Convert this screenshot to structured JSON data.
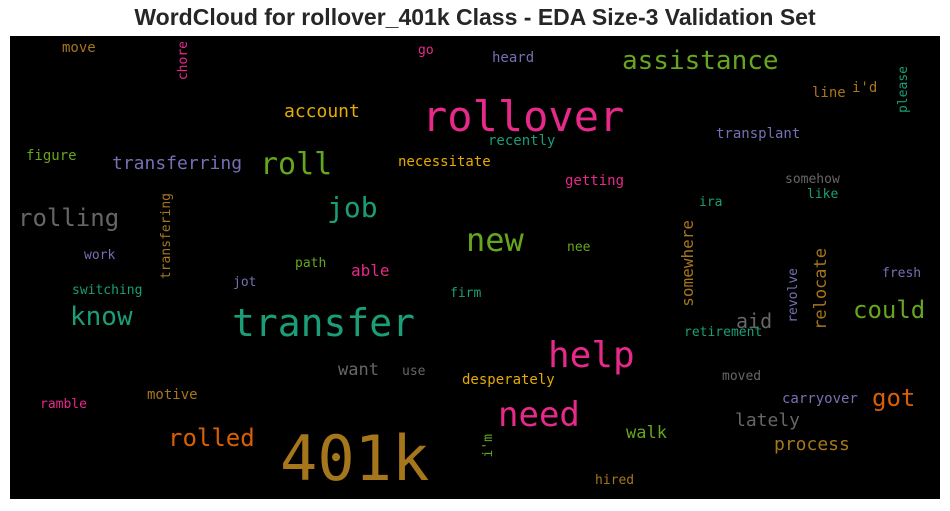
{
  "chart_data": {
    "type": "wordcloud",
    "title": "WordCloud for rollover_401k Class - EDA Size-3 Validation Set",
    "colors": {
      "green": "#66a61e",
      "teal": "#1b9e77",
      "pink": "#e7298a",
      "purple": "#7570b3",
      "orange": "#d95f02",
      "gold": "#e6ab02",
      "brown": "#a6761d",
      "gray": "#666666"
    },
    "words": [
      {
        "text": "401k",
        "color": "#a6761d"
      },
      {
        "text": "transfer",
        "color": "#1b9e77"
      },
      {
        "text": "rollover",
        "color": "#e7298a"
      },
      {
        "text": "help",
        "color": "#e7298a"
      },
      {
        "text": "need",
        "color": "#e7298a"
      },
      {
        "text": "new",
        "color": "#66a61e"
      },
      {
        "text": "roll",
        "color": "#66a61e"
      },
      {
        "text": "job",
        "color": "#1b9e77"
      },
      {
        "text": "assistance",
        "color": "#66a61e"
      },
      {
        "text": "know",
        "color": "#1b9e77"
      },
      {
        "text": "rolling",
        "color": "#666666"
      },
      {
        "text": "rolled",
        "color": "#d95f02"
      },
      {
        "text": "could",
        "color": "#66a61e"
      },
      {
        "text": "got",
        "color": "#d95f02"
      },
      {
        "text": "transferring",
        "color": "#7570b3"
      },
      {
        "text": "account",
        "color": "#e6ab02"
      },
      {
        "text": "aid",
        "color": "#666666"
      },
      {
        "text": "process",
        "color": "#a6761d"
      },
      {
        "text": "lately",
        "color": "#666666"
      },
      {
        "text": "walk",
        "color": "#66a61e"
      },
      {
        "text": "want",
        "color": "#666666"
      },
      {
        "text": "able",
        "color": "#e7298a"
      },
      {
        "text": "relocate",
        "color": "#a6761d"
      },
      {
        "text": "somewhere",
        "color": "#a6761d"
      },
      {
        "text": "necessitate",
        "color": "#e6ab02"
      },
      {
        "text": "recently",
        "color": "#1b9e77"
      },
      {
        "text": "getting",
        "color": "#e7298a"
      },
      {
        "text": "transplant",
        "color": "#7570b3"
      },
      {
        "text": "desperately",
        "color": "#e6ab02"
      },
      {
        "text": "carryover",
        "color": "#7570b3"
      },
      {
        "text": "retirement",
        "color": "#1b9e77"
      },
      {
        "text": "revolve",
        "color": "#7570b3"
      },
      {
        "text": "transfering",
        "color": "#a6761d"
      },
      {
        "text": "switching",
        "color": "#1b9e77"
      },
      {
        "text": "motive",
        "color": "#a6761d"
      },
      {
        "text": "ramble",
        "color": "#e7298a"
      },
      {
        "text": "move",
        "color": "#a6761d"
      },
      {
        "text": "chore",
        "color": "#e7298a"
      },
      {
        "text": "go",
        "color": "#e7298a"
      },
      {
        "text": "heard",
        "color": "#7570b3"
      },
      {
        "text": "figure",
        "color": "#66a61e"
      },
      {
        "text": "line",
        "color": "#a6761d"
      },
      {
        "text": "i'd",
        "color": "#a6761d"
      },
      {
        "text": "please",
        "color": "#1b9e77"
      },
      {
        "text": "somehow",
        "color": "#666666"
      },
      {
        "text": "like",
        "color": "#1b9e77"
      },
      {
        "text": "ira",
        "color": "#1b9e77"
      },
      {
        "text": "nee",
        "color": "#66a61e"
      },
      {
        "text": "path",
        "color": "#66a61e"
      },
      {
        "text": "work",
        "color": "#7570b3"
      },
      {
        "text": "jot",
        "color": "#7570b3"
      },
      {
        "text": "firm",
        "color": "#1b9e77"
      },
      {
        "text": "fresh",
        "color": "#7570b3"
      },
      {
        "text": "use",
        "color": "#666666"
      },
      {
        "text": "moved",
        "color": "#666666"
      },
      {
        "text": "i'm",
        "color": "#66a61e"
      },
      {
        "text": "hired",
        "color": "#a6761d"
      }
    ]
  }
}
